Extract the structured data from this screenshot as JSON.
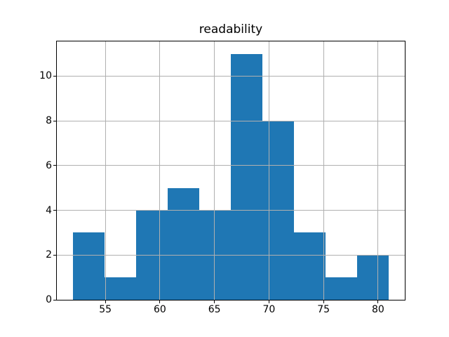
{
  "chart_data": {
    "type": "bar",
    "subtype": "histogram",
    "title": "readability",
    "bin_edges": [
      52.0,
      54.9,
      57.8,
      60.7,
      63.6,
      66.5,
      69.4,
      72.3,
      75.2,
      78.1,
      81.0
    ],
    "counts": [
      3,
      1,
      4,
      5,
      4,
      11,
      8,
      3,
      1,
      2
    ],
    "x_ticks": [
      55,
      60,
      65,
      70,
      75,
      80
    ],
    "y_ticks": [
      0,
      2,
      4,
      6,
      8,
      10
    ],
    "xlim": [
      50.55,
      82.45
    ],
    "ylim": [
      0,
      11.55
    ],
    "xlabel": "",
    "ylabel": "",
    "grid": true,
    "legend_position": "none",
    "colors": {
      "bar": "#1f77b4",
      "grid": "#b0b0b0",
      "spine": "#000000",
      "text": "#000000",
      "background": "#ffffff"
    }
  }
}
